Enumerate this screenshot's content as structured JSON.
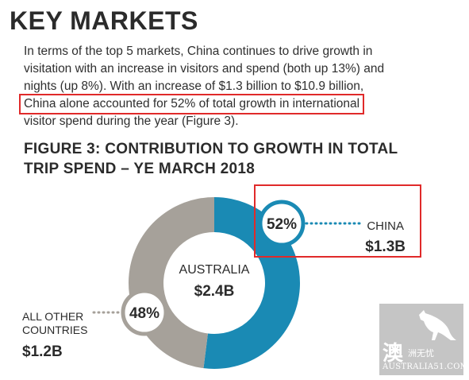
{
  "heading": "KEY MARKETS",
  "paragraph": {
    "lines": [
      "In terms of the top 5 markets, China continues to drive growth in",
      "visitation with an increase in visitors and spend (both up 13%) and",
      "nights (up 8%). With an increase of $1.3 billion to $10.9 billion,",
      "China alone accounted for 52% of total growth in international",
      "visitor spend during the year (Figure 3)."
    ]
  },
  "figure": {
    "title_lines": [
      "FIGURE 3: CONTRIBUTION TO GROWTH IN TOTAL",
      "TRIP SPEND – YE MARCH 2018"
    ]
  },
  "chart_data": {
    "type": "pie",
    "title": "FIGURE 3: CONTRIBUTION TO GROWTH IN TOTAL TRIP SPEND – YE MARCH 2018",
    "center_label": "AUSTRALIA",
    "center_value": "$2.4B",
    "slices": [
      {
        "name": "CHINA",
        "percent": 52,
        "percent_label": "52%",
        "value_label": "$1.3B",
        "color": "#1a8ab4"
      },
      {
        "name_lines": [
          "ALL OTHER",
          "COUNTRIES"
        ],
        "percent": 48,
        "percent_label": "48%",
        "value_label": "$1.2B",
        "color": "#a6a19a"
      }
    ]
  },
  "colors": {
    "china": "#1a8ab4",
    "other": "#a6a19a",
    "highlight": "#e02a2a",
    "text": "#2b2b2b"
  },
  "watermark": {
    "big": "澳",
    "small": "洲无忧",
    "site": "AUSTRALIA51.COM"
  }
}
